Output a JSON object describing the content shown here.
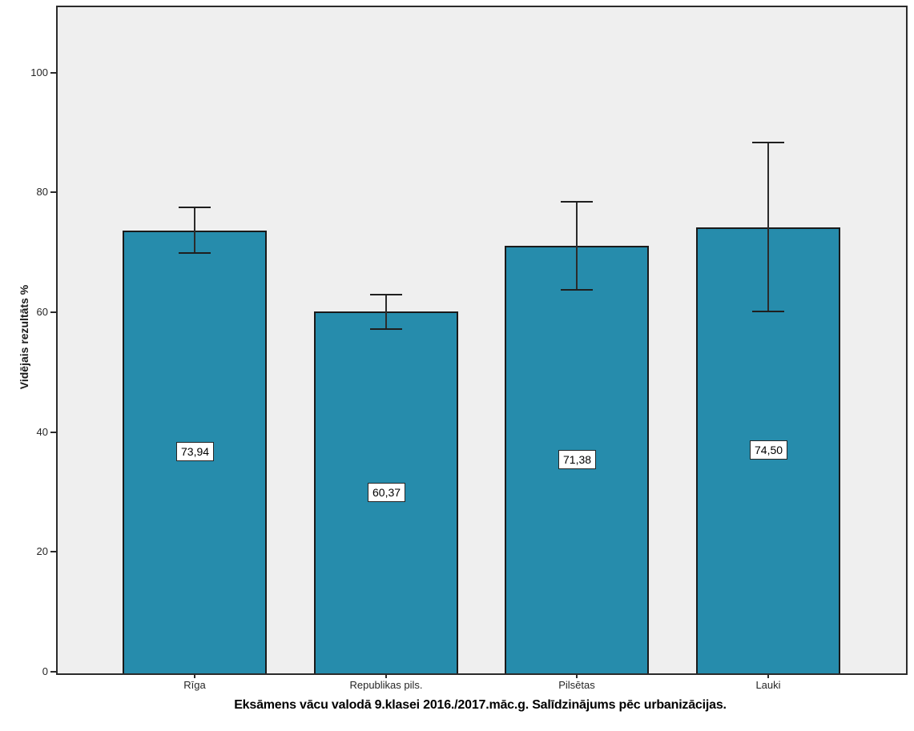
{
  "chart_data": {
    "type": "bar",
    "title": "Eksāmens vācu valodā 9.klasei 2016./2017.māc.g. Salīdzinājums pēc urbanizācijas.",
    "ylabel": "Vidējais rezultāts %",
    "xlabel": "",
    "categories": [
      "Rīga",
      "Republikas pils.",
      "Pilsētas",
      "Lauki"
    ],
    "values": [
      73.94,
      60.37,
      71.38,
      74.5
    ],
    "value_labels": [
      "73,94",
      "60,37",
      "71,38",
      "74,50"
    ],
    "error_bars": [
      {
        "low": 70.2,
        "high": 77.8
      },
      {
        "low": 57.5,
        "high": 63.2
      },
      {
        "low": 64.0,
        "high": 78.7
      },
      {
        "low": 60.4,
        "high": 88.6
      }
    ],
    "yticks": [
      0,
      20,
      40,
      60,
      80,
      100
    ],
    "ylim": [
      0,
      111.2
    ],
    "grid": false,
    "legend": false,
    "bar_color": "#268cac",
    "plot_background": "#efefef",
    "axis_color": "#2b2b2b"
  }
}
